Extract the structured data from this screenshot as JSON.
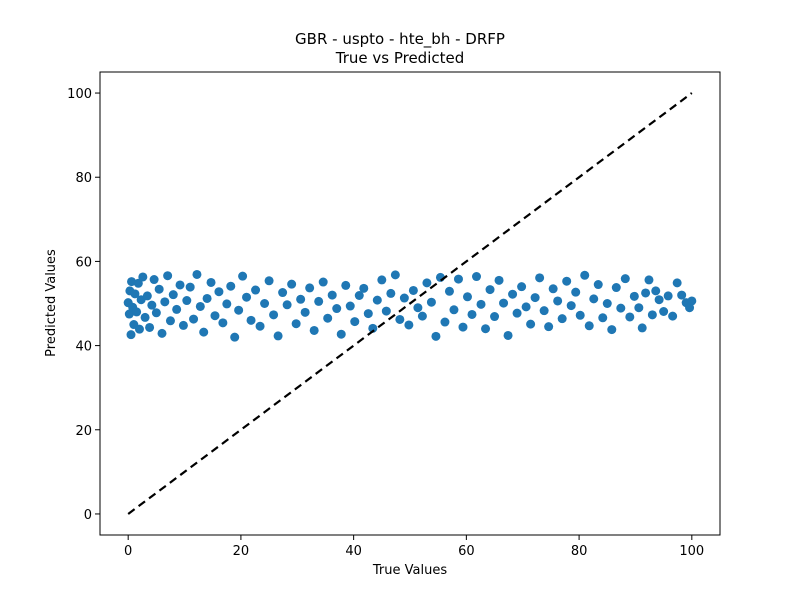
{
  "chart_data": {
    "type": "scatter",
    "title": "GBR - uspto - hte_bh - DRFP",
    "subtitle": "True vs Predicted",
    "xlabel": "True Values",
    "ylabel": "Predicted Values",
    "xlim": [
      -5,
      105
    ],
    "ylim": [
      -5,
      105
    ],
    "xticks": [
      0,
      20,
      40,
      60,
      80,
      100
    ],
    "yticks": [
      0,
      20,
      40,
      60,
      80,
      100
    ],
    "grid": false,
    "series": [
      {
        "marker": "circle",
        "color": "#1f77b4",
        "points": [
          [
            0,
            50.2
          ],
          [
            0.2,
            47.5
          ],
          [
            0.3,
            53.0
          ],
          [
            0.5,
            42.6
          ],
          [
            0.6,
            55.2
          ],
          [
            0.8,
            49.1
          ],
          [
            1,
            45.0
          ],
          [
            1.2,
            52.3
          ],
          [
            1.5,
            48.0
          ],
          [
            1.8,
            54.8
          ],
          [
            2,
            43.9
          ],
          [
            2.3,
            50.9
          ],
          [
            2.6,
            56.3
          ],
          [
            3,
            46.7
          ],
          [
            3.4,
            51.8
          ],
          [
            3.8,
            44.3
          ],
          [
            4.2,
            49.6
          ],
          [
            4.6,
            55.7
          ],
          [
            5,
            47.8
          ],
          [
            5.5,
            53.4
          ],
          [
            6,
            42.9
          ],
          [
            6.5,
            50.4
          ],
          [
            7,
            56.6
          ],
          [
            7.5,
            45.9
          ],
          [
            8,
            52.1
          ],
          [
            8.6,
            48.6
          ],
          [
            9.2,
            54.4
          ],
          [
            9.8,
            44.8
          ],
          [
            10.4,
            50.7
          ],
          [
            11,
            53.9
          ],
          [
            11.6,
            46.3
          ],
          [
            12.2,
            56.9
          ],
          [
            12.8,
            49.3
          ],
          [
            13.4,
            43.2
          ],
          [
            14,
            51.2
          ],
          [
            14.7,
            55.0
          ],
          [
            15.4,
            47.1
          ],
          [
            16.1,
            52.8
          ],
          [
            16.8,
            45.4
          ],
          [
            17.5,
            49.9
          ],
          [
            18.2,
            54.1
          ],
          [
            18.9,
            42.0
          ],
          [
            19.6,
            48.4
          ],
          [
            20.3,
            56.5
          ],
          [
            21,
            51.5
          ],
          [
            21.8,
            46.0
          ],
          [
            22.6,
            53.2
          ],
          [
            23.4,
            44.6
          ],
          [
            24.2,
            50.0
          ],
          [
            25,
            55.4
          ],
          [
            25.8,
            47.3
          ],
          [
            26.6,
            42.3
          ],
          [
            27.4,
            52.6
          ],
          [
            28.2,
            49.7
          ],
          [
            29,
            54.6
          ],
          [
            29.8,
            45.2
          ],
          [
            30.6,
            51.0
          ],
          [
            31.4,
            47.9
          ],
          [
            32.2,
            53.7
          ],
          [
            33,
            43.6
          ],
          [
            33.8,
            50.5
          ],
          [
            34.6,
            55.1
          ],
          [
            35.4,
            46.5
          ],
          [
            36.2,
            52.0
          ],
          [
            37,
            48.8
          ],
          [
            37.8,
            42.7
          ],
          [
            38.6,
            54.3
          ],
          [
            39.4,
            49.4
          ],
          [
            40.2,
            45.7
          ],
          [
            41,
            51.9
          ],
          [
            41.8,
            53.6
          ],
          [
            42.6,
            47.6
          ],
          [
            43.4,
            44.1
          ],
          [
            44.2,
            50.8
          ],
          [
            45,
            55.6
          ],
          [
            45.8,
            48.2
          ],
          [
            46.6,
            52.4
          ],
          [
            47.4,
            56.8
          ],
          [
            48.2,
            46.2
          ],
          [
            49,
            51.3
          ],
          [
            49.8,
            44.9
          ],
          [
            50.6,
            53.1
          ],
          [
            51.4,
            49.0
          ],
          [
            52.2,
            47.0
          ],
          [
            53,
            54.9
          ],
          [
            53.8,
            50.3
          ],
          [
            54.6,
            42.2
          ],
          [
            55.4,
            56.2
          ],
          [
            56.2,
            45.6
          ],
          [
            57,
            52.9
          ],
          [
            57.8,
            48.5
          ],
          [
            58.6,
            55.8
          ],
          [
            59.4,
            44.4
          ],
          [
            60.2,
            51.6
          ],
          [
            61,
            47.4
          ],
          [
            61.8,
            56.4
          ],
          [
            62.6,
            49.8
          ],
          [
            63.4,
            44.0
          ],
          [
            64.2,
            53.3
          ],
          [
            65,
            46.9
          ],
          [
            65.8,
            55.5
          ],
          [
            66.6,
            50.1
          ],
          [
            67.4,
            42.4
          ],
          [
            68.2,
            52.2
          ],
          [
            69,
            47.7
          ],
          [
            69.8,
            54.0
          ],
          [
            70.6,
            49.2
          ],
          [
            71.4,
            45.1
          ],
          [
            72.2,
            51.4
          ],
          [
            73,
            56.1
          ],
          [
            73.8,
            48.3
          ],
          [
            74.6,
            44.5
          ],
          [
            75.4,
            53.5
          ],
          [
            76.2,
            50.6
          ],
          [
            77,
            46.4
          ],
          [
            77.8,
            55.3
          ],
          [
            78.6,
            49.5
          ],
          [
            79.4,
            52.7
          ],
          [
            80.2,
            47.2
          ],
          [
            81,
            56.7
          ],
          [
            81.8,
            44.7
          ],
          [
            82.6,
            51.1
          ],
          [
            83.4,
            54.5
          ],
          [
            84.2,
            46.6
          ],
          [
            85,
            50.0
          ],
          [
            85.8,
            43.8
          ],
          [
            86.6,
            53.8
          ],
          [
            87.4,
            48.9
          ],
          [
            88.2,
            55.9
          ],
          [
            89,
            46.8
          ],
          [
            89.8,
            51.7
          ],
          [
            90.6,
            49.0
          ],
          [
            91.2,
            44.2
          ],
          [
            91.8,
            52.5
          ],
          [
            92.4,
            55.6
          ],
          [
            93,
            47.3
          ],
          [
            93.6,
            53.0
          ],
          [
            94.2,
            50.9
          ],
          [
            95,
            48.1
          ],
          [
            95.8,
            51.8
          ],
          [
            96.6,
            47.0
          ],
          [
            97.4,
            54.9
          ],
          [
            98.2,
            52.0
          ],
          [
            99,
            50.2
          ],
          [
            99.6,
            49.0
          ],
          [
            100,
            50.6
          ]
        ]
      }
    ],
    "reference_line": {
      "x": [
        0,
        100
      ],
      "y": [
        0,
        100
      ],
      "style": "dashed",
      "color": "#000000"
    }
  }
}
